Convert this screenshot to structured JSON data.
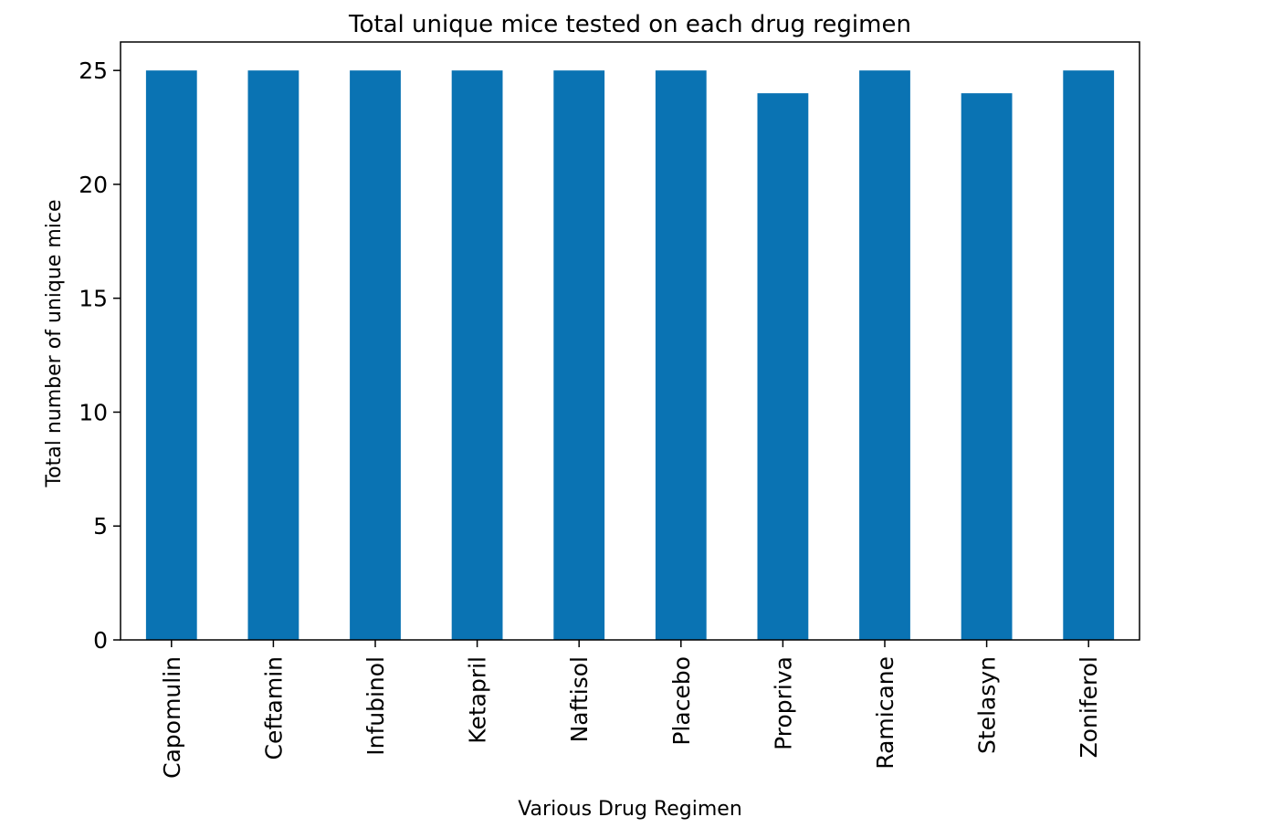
{
  "chart_data": {
    "type": "bar",
    "title": "Total unique mice tested on each drug regimen",
    "xlabel": "Various Drug Regimen",
    "ylabel": "Total number of unique mice",
    "categories": [
      "Capomulin",
      "Ceftamin",
      "Infubinol",
      "Ketapril",
      "Naftisol",
      "Placebo",
      "Propriva",
      "Ramicane",
      "Stelasyn",
      "Zoniferol"
    ],
    "values": [
      25,
      25,
      25,
      25,
      25,
      25,
      24,
      25,
      24,
      25
    ],
    "ylim": [
      0,
      26.25
    ],
    "yticks": [
      0,
      5,
      10,
      15,
      20,
      25
    ],
    "grid": false,
    "legend": "none",
    "bar_color": "#0a73b3"
  }
}
